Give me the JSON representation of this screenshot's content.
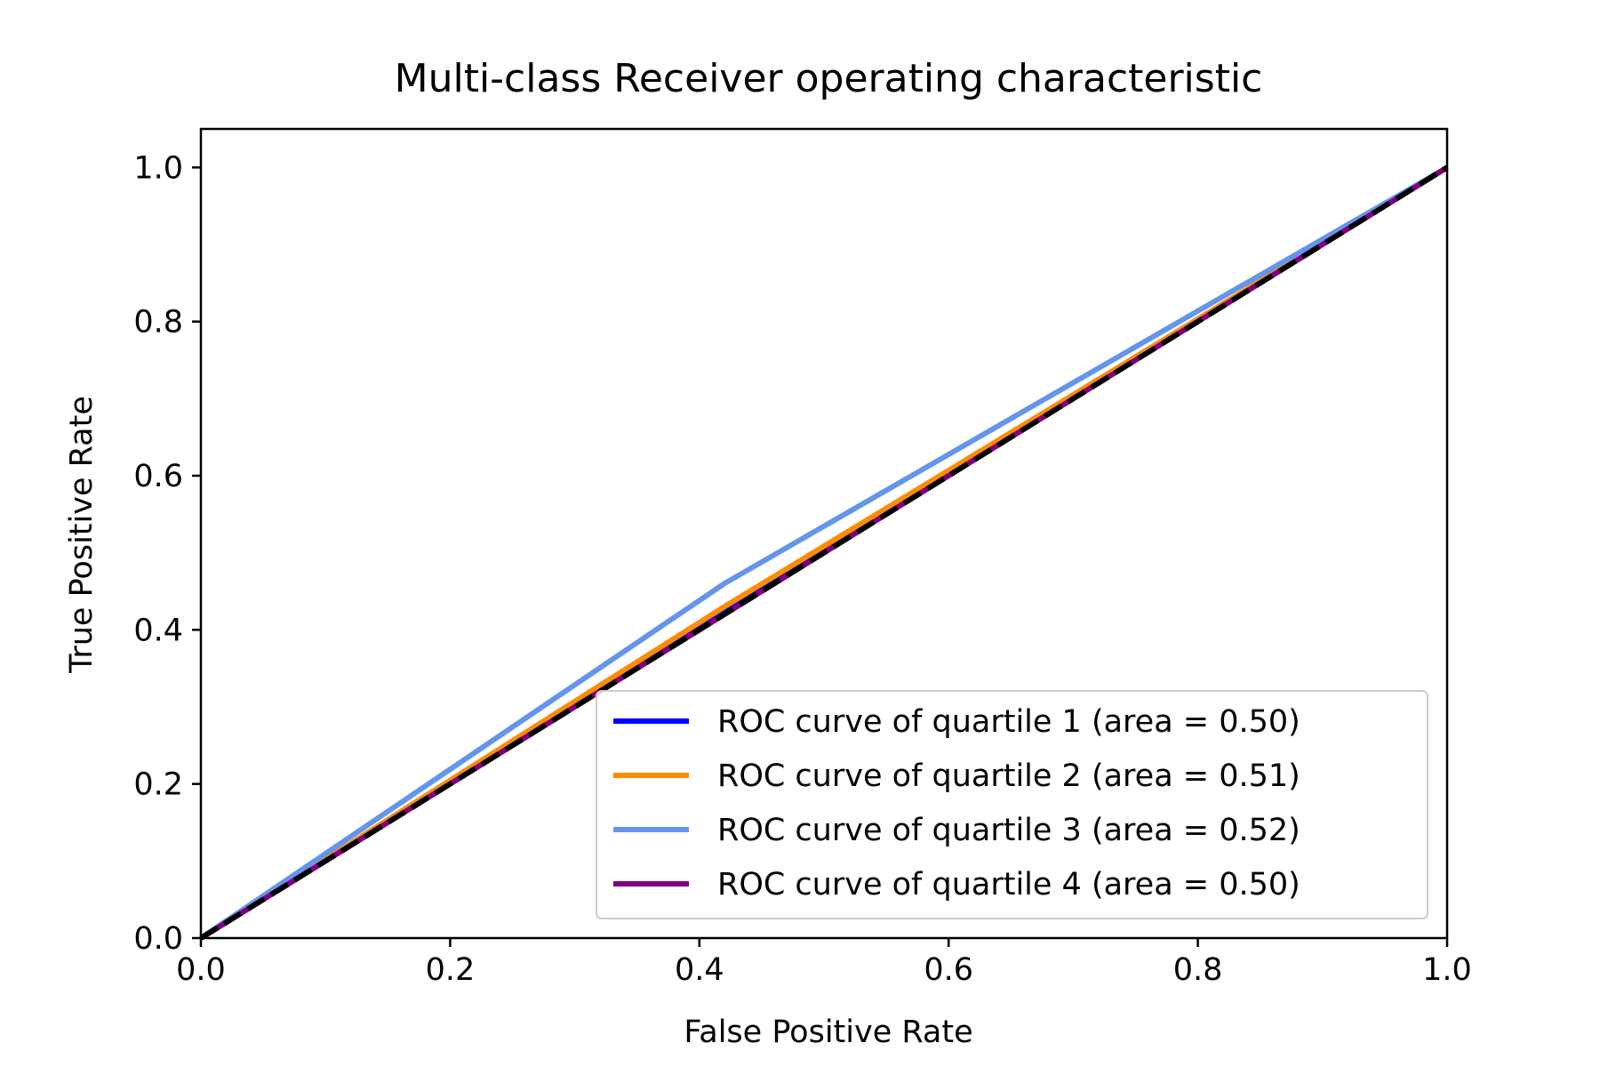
{
  "chart_data": {
    "type": "line",
    "title": "Multi-class Receiver operating characteristic",
    "xlabel": "False Positive Rate",
    "ylabel": "True Positive Rate",
    "xlim": [
      0.0,
      1.0
    ],
    "ylim": [
      0.0,
      1.05
    ],
    "x_ticks": [
      0.0,
      0.2,
      0.4,
      0.6,
      0.8,
      1.0
    ],
    "x_tick_labels": [
      "0.0",
      "0.2",
      "0.4",
      "0.6",
      "0.8",
      "1.0"
    ],
    "y_ticks": [
      0.0,
      0.2,
      0.4,
      0.6,
      0.8,
      1.0
    ],
    "y_tick_labels": [
      "0.0",
      "0.2",
      "0.4",
      "0.6",
      "0.8",
      "1.0"
    ],
    "grid": false,
    "legend_position": "lower-right",
    "series": [
      {
        "name": "ROC curve of quartile 1 (area = 0.50)",
        "color": "#0000ff",
        "x": [
          0.0,
          0.42,
          1.0
        ],
        "y": [
          0.0,
          0.422,
          1.0
        ]
      },
      {
        "name": "ROC curve of quartile 2 (area = 0.51)",
        "color": "#ff8c00",
        "x": [
          0.0,
          0.42,
          1.0
        ],
        "y": [
          0.0,
          0.43,
          1.0
        ]
      },
      {
        "name": "ROC curve of quartile 3 (area = 0.52)",
        "color": "#6495ed",
        "x": [
          0.0,
          0.42,
          1.0
        ],
        "y": [
          0.0,
          0.46,
          1.0
        ]
      },
      {
        "name": "ROC curve of quartile 4 (area = 0.50)",
        "color": "#800080",
        "x": [
          0.0,
          1.0
        ],
        "y": [
          0.0,
          1.0
        ]
      }
    ],
    "reference_line": {
      "color": "#000000",
      "style": "dashed",
      "x": [
        0.0,
        1.0
      ],
      "y": [
        0.0,
        1.0
      ]
    }
  }
}
